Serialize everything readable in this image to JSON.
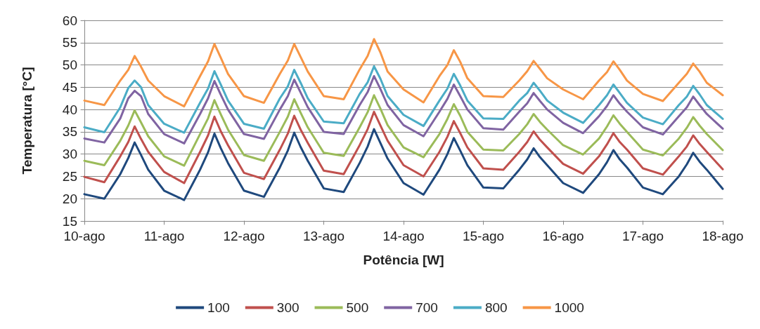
{
  "chart_data": {
    "type": "line",
    "xlabel": "Potência [W]",
    "ylabel": "Temperatura [°C]",
    "x": [
      10,
      10.25,
      10.45,
      10.55,
      10.63,
      10.71,
      10.8,
      11,
      11.25,
      11.45,
      11.55,
      11.63,
      11.71,
      11.8,
      12,
      12.25,
      12.45,
      12.55,
      12.63,
      12.71,
      12.8,
      13,
      13.25,
      13.45,
      13.55,
      13.63,
      13.71,
      13.8,
      14,
      14.25,
      14.45,
      14.55,
      14.63,
      14.71,
      14.8,
      15,
      15.25,
      15.45,
      15.55,
      15.63,
      15.71,
      15.8,
      16,
      16.25,
      16.45,
      16.55,
      16.63,
      16.71,
      16.8,
      17,
      17.25,
      17.45,
      17.55,
      17.63,
      17.71,
      17.8,
      18
    ],
    "xlim": [
      10,
      18
    ],
    "xticks": [
      {
        "value": 10,
        "label": "10-ago"
      },
      {
        "value": 11,
        "label": "11-ago"
      },
      {
        "value": 12,
        "label": "12-ago"
      },
      {
        "value": 13,
        "label": "13-ago"
      },
      {
        "value": 14,
        "label": "14-ago"
      },
      {
        "value": 15,
        "label": "15-ago"
      },
      {
        "value": 16,
        "label": "16-ago"
      },
      {
        "value": 17,
        "label": "17-ago"
      },
      {
        "value": 18,
        "label": "18-ago"
      }
    ],
    "ylim": [
      15,
      60
    ],
    "yticks": [
      15,
      20,
      25,
      30,
      35,
      40,
      45,
      50,
      55,
      60
    ],
    "grid": "y",
    "legend": "bottom",
    "marker": "none",
    "line_style": "solid",
    "series": [
      {
        "name": "100",
        "color": "#1f497d",
        "values": [
          21,
          20,
          25.5,
          29.1,
          32.6,
          29.8,
          26.5,
          21.8,
          19.7,
          26.5,
          30.4,
          34.6,
          31.3,
          28,
          21.8,
          20.4,
          27,
          30.8,
          34.8,
          31.6,
          28.5,
          22.3,
          21.5,
          28,
          31.7,
          35.6,
          32.5,
          29,
          23.5,
          20.9,
          26.5,
          30,
          33.6,
          30.8,
          27.5,
          22.5,
          22.3,
          26.5,
          28.8,
          31.3,
          29.3,
          27.5,
          23.5,
          21.3,
          25.5,
          28.2,
          30.9,
          28.8,
          27,
          22.5,
          21,
          25,
          27.7,
          30.3,
          28.3,
          26.5,
          22.2
        ]
      },
      {
        "name": "300",
        "color": "#c0504d",
        "values": [
          24.9,
          23.7,
          29.5,
          32.7,
          36.2,
          33.4,
          30.5,
          26,
          23.5,
          30.5,
          34.2,
          38.4,
          35.1,
          32,
          25.8,
          24.4,
          31,
          34.6,
          38.6,
          35.5,
          32.5,
          26.3,
          25.5,
          32,
          35.6,
          39.5,
          36.4,
          33,
          27.5,
          25,
          30.5,
          33.9,
          37.4,
          34.7,
          31.5,
          26.8,
          26.5,
          30.5,
          32.7,
          35.1,
          33.2,
          31.5,
          27.8,
          25.6,
          29.5,
          32.2,
          34.7,
          32.7,
          31,
          26.8,
          25.4,
          29.5,
          31.7,
          34.2,
          32.3,
          30.5,
          26.6
        ]
      },
      {
        "name": "500",
        "color": "#9bbb59",
        "values": [
          28.5,
          27.5,
          33,
          36.4,
          39.8,
          37.1,
          34,
          29.5,
          27.4,
          34.5,
          38,
          42.1,
          38.9,
          35.5,
          29.8,
          28.5,
          35,
          38.4,
          42.3,
          39.3,
          36,
          30.3,
          29.6,
          36,
          39.4,
          43.2,
          40.2,
          36.5,
          31.5,
          29.3,
          34.5,
          37.9,
          41.2,
          38.6,
          35,
          31,
          30.8,
          34.5,
          36.7,
          39,
          37.2,
          35.5,
          32,
          29.9,
          33.5,
          36.2,
          38.7,
          36.8,
          35,
          31,
          29.7,
          33.5,
          35.9,
          38.3,
          36.4,
          34.5,
          30.9
        ]
      },
      {
        "name": "700",
        "color": "#8064a2",
        "values": [
          33.5,
          32.6,
          38,
          42.5,
          44.2,
          43,
          39,
          34.5,
          32.4,
          39,
          42.5,
          46.4,
          43.3,
          40,
          34.5,
          33.4,
          40,
          43,
          46.7,
          43.8,
          40.5,
          35,
          34.5,
          41,
          43.9,
          47.5,
          44.6,
          41,
          36.5,
          34,
          39.5,
          42.4,
          45.6,
          43,
          40,
          35.8,
          35.5,
          39.5,
          41.4,
          43.7,
          41.9,
          40,
          37,
          34.7,
          38.5,
          40.8,
          43.2,
          41.3,
          39.5,
          36,
          34.4,
          38.5,
          40.5,
          42.9,
          41,
          39,
          35.7
        ]
      },
      {
        "name": "800",
        "color": "#4bacc6",
        "values": [
          36,
          34.9,
          40.5,
          44.8,
          46.5,
          45,
          41,
          36.8,
          34.8,
          41.5,
          44.7,
          48.6,
          45.6,
          42,
          36.8,
          35.7,
          42.5,
          45.2,
          48.9,
          46,
          42.5,
          37.3,
          36.9,
          43.5,
          46.1,
          49.7,
          46.9,
          43,
          38.8,
          36.3,
          42,
          44.7,
          48,
          45.4,
          42,
          38,
          37.9,
          42,
          43.7,
          46,
          44.2,
          42,
          39.3,
          37,
          41,
          43.2,
          45.6,
          43.7,
          41.5,
          38.2,
          36.7,
          41,
          42.9,
          45.3,
          43.4,
          41,
          37.9
        ]
      },
      {
        "name": "1000",
        "color": "#f79646",
        "values": [
          42,
          41,
          46.5,
          48.9,
          52,
          49.6,
          46.5,
          43,
          40.7,
          47.5,
          50.8,
          54.7,
          51.6,
          48,
          43,
          41.5,
          48,
          51,
          54.7,
          51.8,
          48.5,
          43,
          42.3,
          49,
          52,
          55.8,
          52.8,
          48.5,
          44.5,
          41.6,
          47.5,
          50,
          53.3,
          50.7,
          47,
          43,
          42.8,
          46.5,
          48.6,
          50.9,
          49.1,
          47,
          44.5,
          42.3,
          46.5,
          48.4,
          50.8,
          48.9,
          46.5,
          43.5,
          41.9,
          46,
          48,
          50.3,
          48.5,
          46,
          43.2
        ]
      }
    ]
  }
}
